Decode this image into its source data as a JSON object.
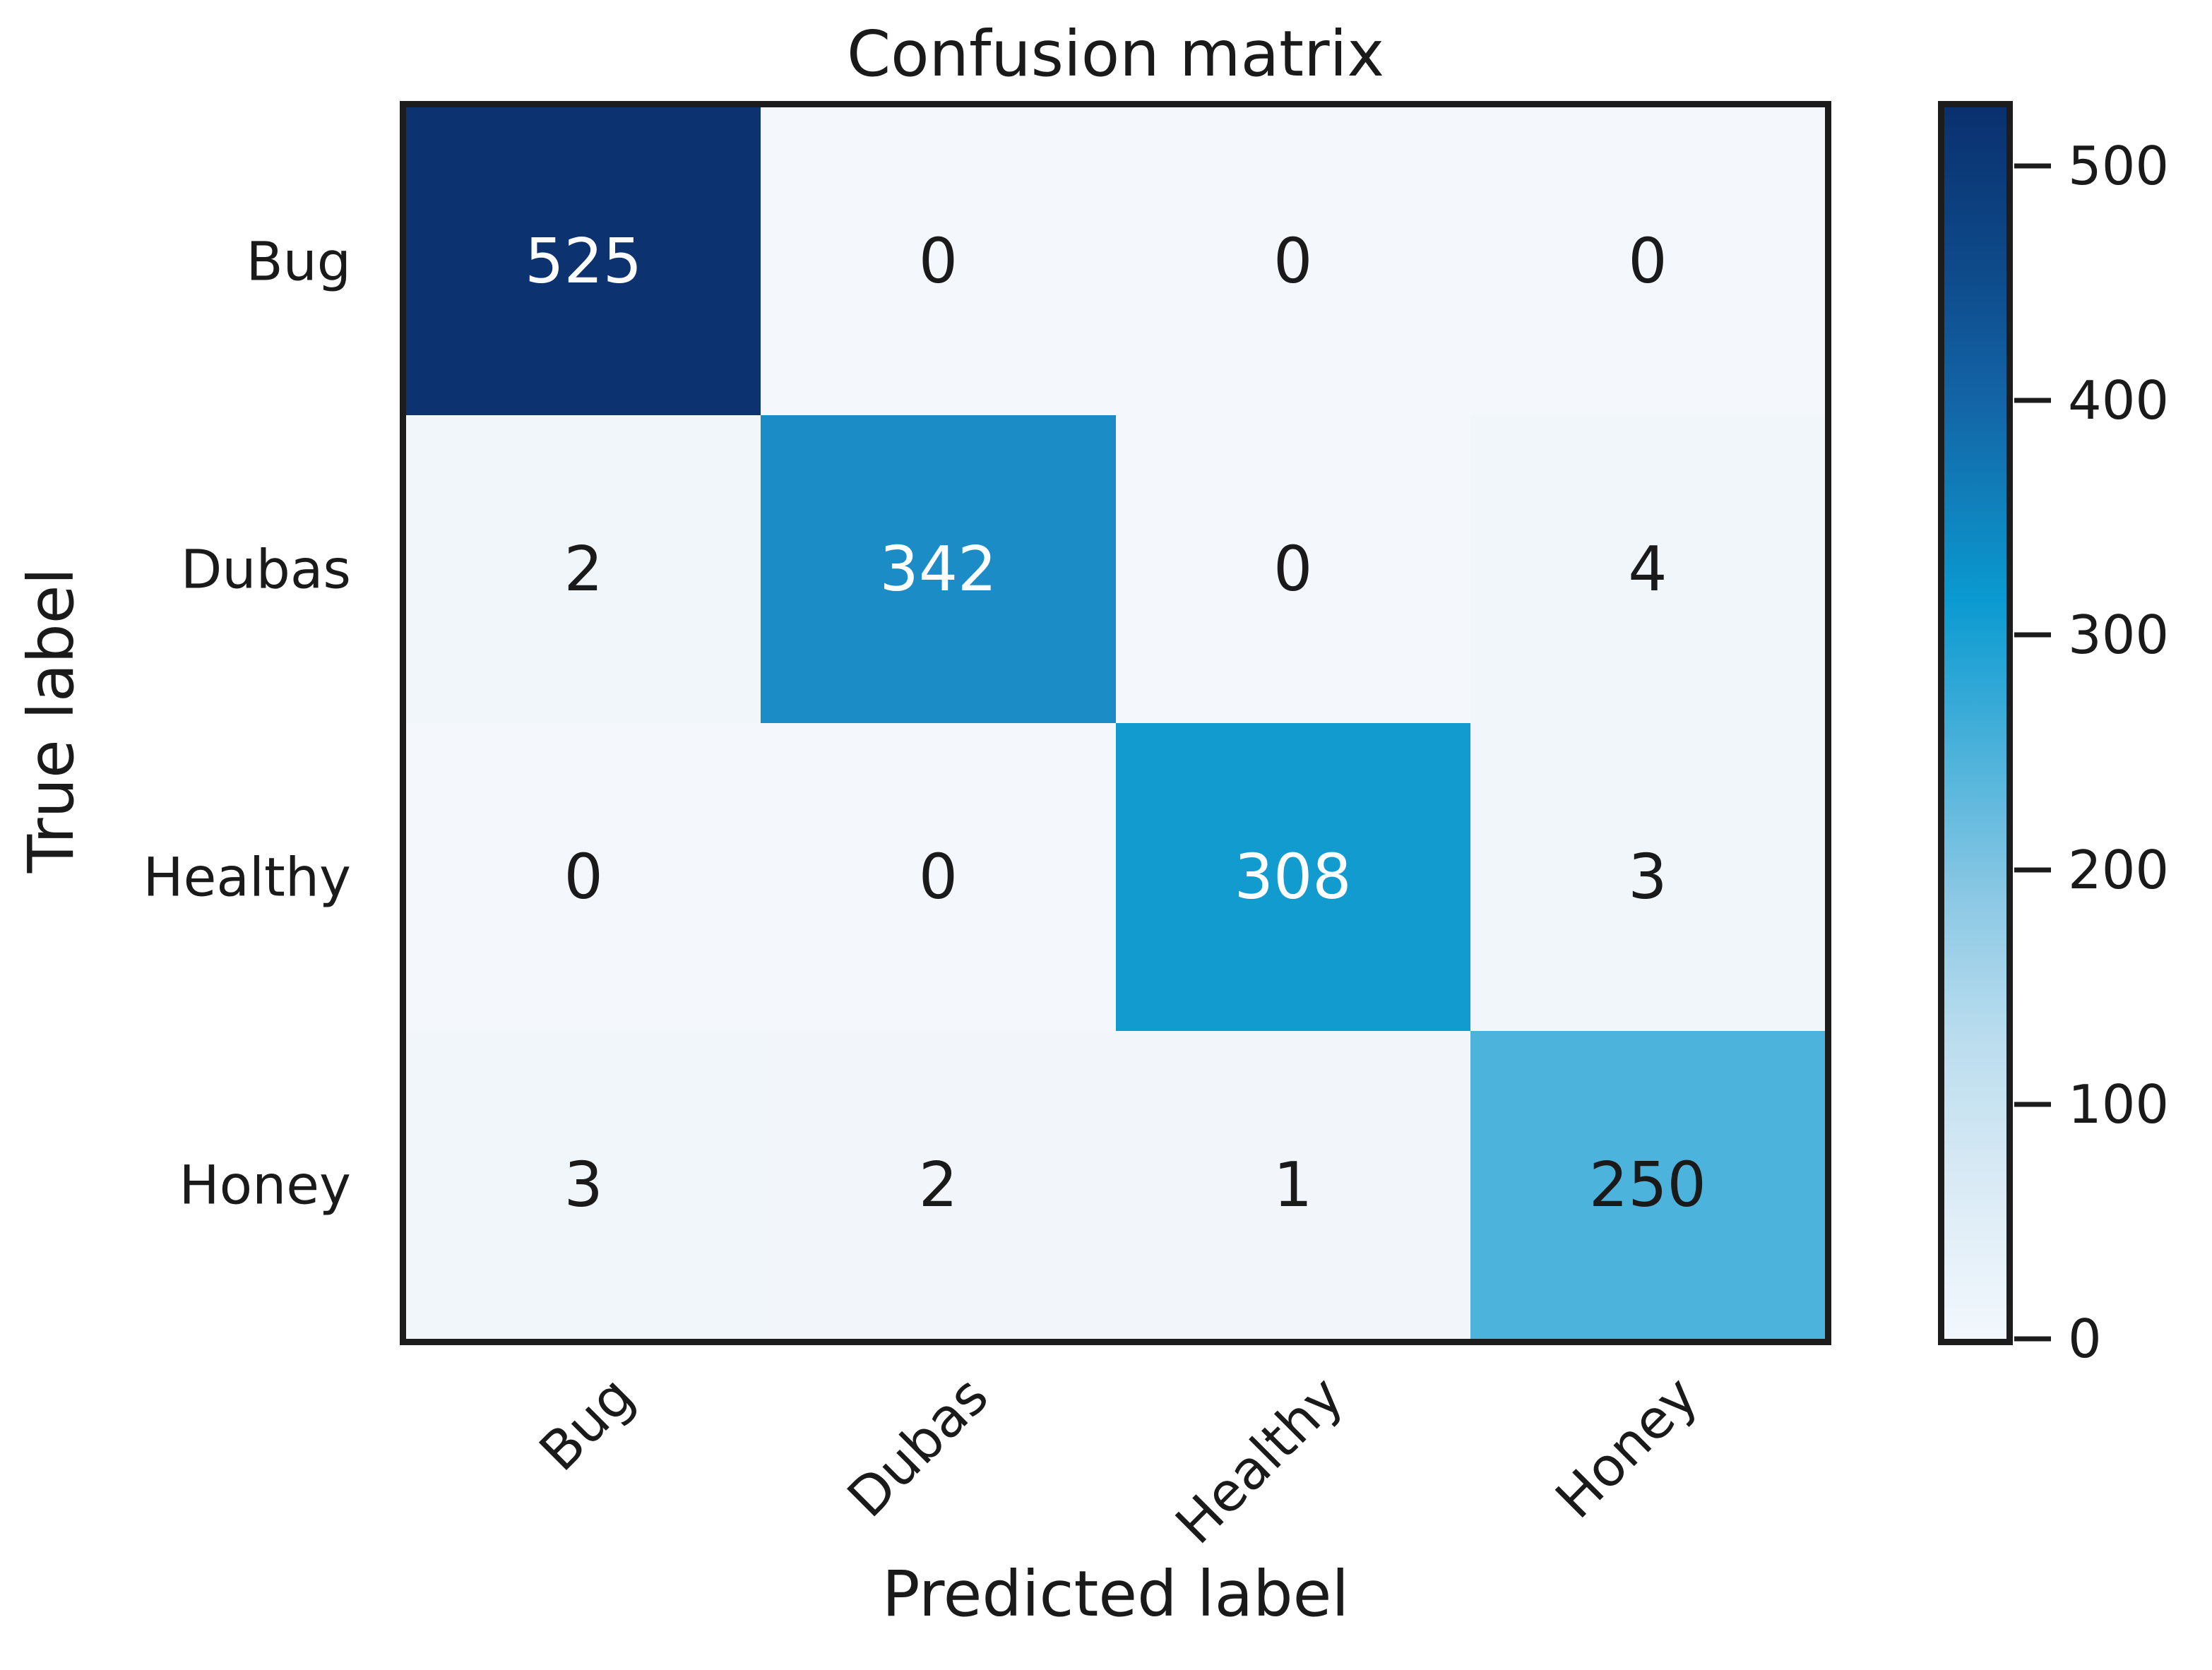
{
  "figure": {
    "title": "Confusion matrix",
    "x_axis_label": "Predicted label",
    "y_axis_label": "True label"
  },
  "chart_data": {
    "type": "heatmap",
    "title": "Confusion matrix",
    "xlabel": "Predicted label",
    "ylabel": "True label",
    "categories": [
      "Bug",
      "Dubas",
      "Healthy",
      "Honey"
    ],
    "x_tick_labels": [
      "Bug",
      "Dubas",
      "Healthy",
      "Honey"
    ],
    "y_tick_labels": [
      "Bug",
      "Dubas",
      "Healthy",
      "Honey"
    ],
    "matrix": [
      [
        525,
        0,
        0,
        0
      ],
      [
        2,
        342,
        0,
        4
      ],
      [
        0,
        0,
        308,
        3
      ],
      [
        3,
        2,
        1,
        250
      ]
    ],
    "vmin": 0,
    "vmax": 525,
    "colormap": "Blues",
    "colorbar_position": "right",
    "colorbar_ticks": [
      500,
      400,
      300,
      200,
      100,
      0
    ],
    "cell_colors": [
      [
        "#0c326f",
        "#f4f8fc",
        "#f4f8fc",
        "#f4f8fc"
      ],
      [
        "#f1f6fb",
        "#1b8cc5",
        "#f4f8fc",
        "#f1f6fb"
      ],
      [
        "#f4f8fc",
        "#f4f8fc",
        "#119bce",
        "#f1f6fb"
      ],
      [
        "#f1f6fb",
        "#f2f6fb",
        "#f2f6fb",
        "#4cb3dc"
      ]
    ],
    "cell_text_colors": [
      [
        "#ffffff",
        "#1a1a1a",
        "#1a1a1a",
        "#1a1a1a"
      ],
      [
        "#1a1a1a",
        "#ffffff",
        "#1a1a1a",
        "#1a1a1a"
      ],
      [
        "#1a1a1a",
        "#1a1a1a",
        "#ffffff",
        "#1a1a1a"
      ],
      [
        "#1a1a1a",
        "#1a1a1a",
        "#1a1a1a",
        "#1a1a1a"
      ]
    ]
  },
  "colors": {
    "background": "#ffffff",
    "axis_text": "#1a1a1a",
    "border": "#1c1c1c",
    "colorbar_stops": [
      [
        "#0a306e",
        0
      ],
      [
        "#0e4c8c",
        14
      ],
      [
        "#1365a7",
        24
      ],
      [
        "#0f83bd",
        33
      ],
      [
        "#0a9ad1",
        40
      ],
      [
        "#49b1da",
        52
      ],
      [
        "#8ac8e4",
        64
      ],
      [
        "#b8dcee",
        75
      ],
      [
        "#d9eaf5",
        87
      ],
      [
        "#f2f8fd",
        100
      ]
    ]
  }
}
